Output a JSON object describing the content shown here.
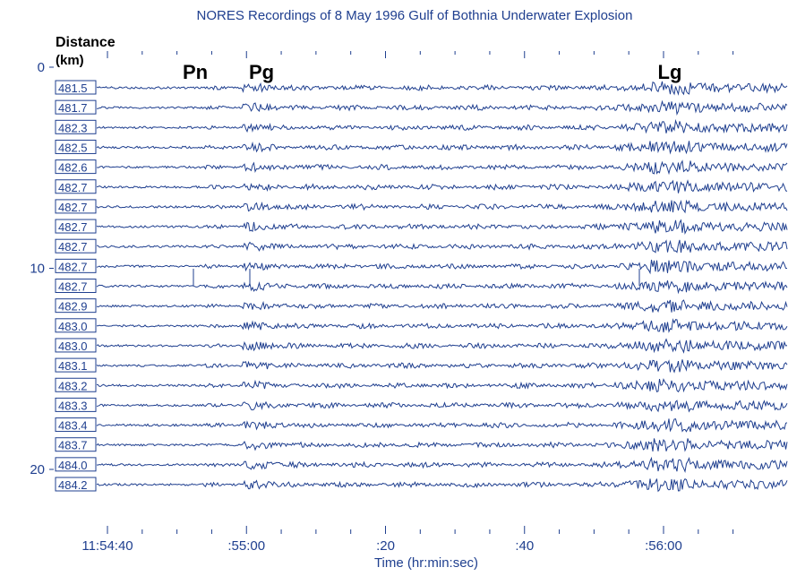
{
  "chart_data": {
    "type": "line",
    "title": "NORES Recordings of 8 May 1996 Gulf of Bothnia Underwater Explosion",
    "ylabel_line1": "Distance",
    "ylabel_line2": "(km)",
    "xlabel": "Time (hr:min:sec)",
    "x_range_sec": [
      0,
      43
    ],
    "x_ticks": [
      {
        "label": "11:54:40",
        "value": 2
      },
      {
        "label": ":55:00",
        "value": 22
      },
      {
        "label": ":20",
        "value": 42
      },
      {
        "label": ":40",
        "value": 62
      },
      {
        "label": ":56:00",
        "value": 82
      }
    ],
    "y_ticks": [
      {
        "label": "0",
        "value": 0
      },
      {
        "label": "10",
        "value": 10
      },
      {
        "label": "20",
        "value": 20
      }
    ],
    "phases": [
      {
        "label": "Pn",
        "time": 17
      },
      {
        "label": "Pg",
        "time": 24
      },
      {
        "label": "Lg",
        "time": 81
      }
    ],
    "traces": [
      {
        "distance_km": "481.5",
        "channel": 1
      },
      {
        "distance_km": "481.7",
        "channel": 2
      },
      {
        "distance_km": "482.3",
        "channel": 3
      },
      {
        "distance_km": "482.5",
        "channel": 4
      },
      {
        "distance_km": "482.6",
        "channel": 5
      },
      {
        "distance_km": "482.7",
        "channel": 6
      },
      {
        "distance_km": "482.7",
        "channel": 7
      },
      {
        "distance_km": "482.7",
        "channel": 8
      },
      {
        "distance_km": "482.7",
        "channel": 9
      },
      {
        "distance_km": "482.7",
        "channel": 10
      },
      {
        "distance_km": "482.7",
        "channel": 11
      },
      {
        "distance_km": "482.9",
        "channel": 12
      },
      {
        "distance_km": "483.0",
        "channel": 13
      },
      {
        "distance_km": "483.0",
        "channel": 14
      },
      {
        "distance_km": "483.1",
        "channel": 15
      },
      {
        "distance_km": "483.2",
        "channel": 16
      },
      {
        "distance_km": "483.3",
        "channel": 17
      },
      {
        "distance_km": "483.4",
        "channel": 18
      },
      {
        "distance_km": "483.7",
        "channel": 19
      },
      {
        "distance_km": "484.0",
        "channel": 20
      },
      {
        "distance_km": "484.2",
        "channel": 21
      }
    ],
    "colors": {
      "trace": "#1f3f8f",
      "text": "#1f3f8f",
      "phase": "#000000"
    }
  }
}
